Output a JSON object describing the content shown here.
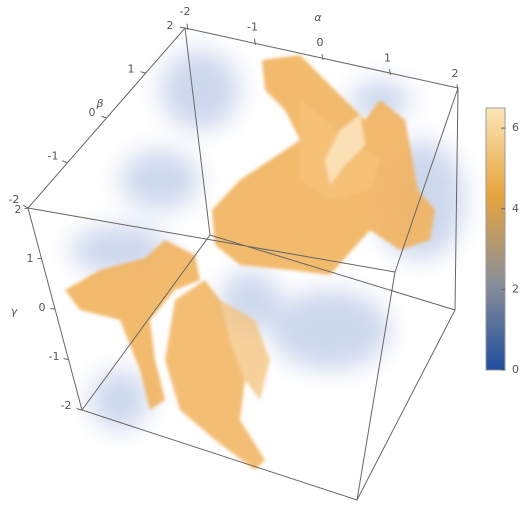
{
  "chart_data": {
    "type": "volume3d",
    "xlabel": "α",
    "ylabel": "β",
    "zlabel": "γ",
    "xlim": [
      -2,
      2
    ],
    "xticks": [
      -2,
      -1,
      0,
      1,
      2
    ],
    "ylim": [
      -2,
      2
    ],
    "yticks": [
      -2,
      -1,
      0,
      1,
      2
    ],
    "zlim": [
      -2,
      2
    ],
    "zticks": [
      -2,
      -1,
      0,
      1,
      2
    ],
    "colorbar": {
      "lim": [
        0,
        6.5
      ],
      "ticks": [
        0,
        2,
        4,
        6
      ],
      "colors": [
        "#1f4e9e",
        "#8a8f99",
        "#e7a43c",
        "#fbe7b8"
      ]
    }
  }
}
